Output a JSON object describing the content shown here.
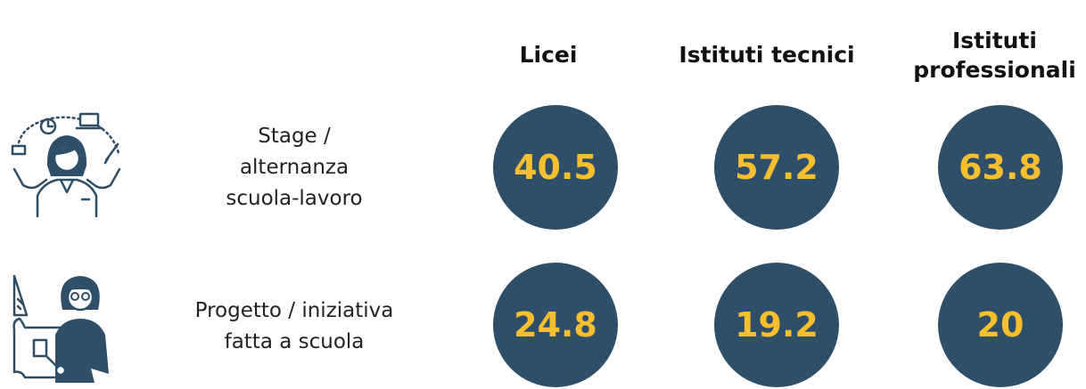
{
  "chart_data": {
    "type": "table",
    "columns": [
      "Licei",
      "Istituti tecnici",
      "Istituti professionali"
    ],
    "rows": [
      {
        "label": "Stage / alternanza scuola-lavoro",
        "values": [
          "40.5",
          "57.2",
          "63.8"
        ]
      },
      {
        "label": "Progetto / iniziativa fatta a scuola",
        "values": [
          "24.8",
          "19.2",
          "20"
        ]
      }
    ]
  },
  "colors": {
    "bubble": "#2f4e68",
    "value_text": "#f5bf2f"
  },
  "icons": [
    "person-juggling-tasks-icon",
    "student-with-documents-icon"
  ]
}
